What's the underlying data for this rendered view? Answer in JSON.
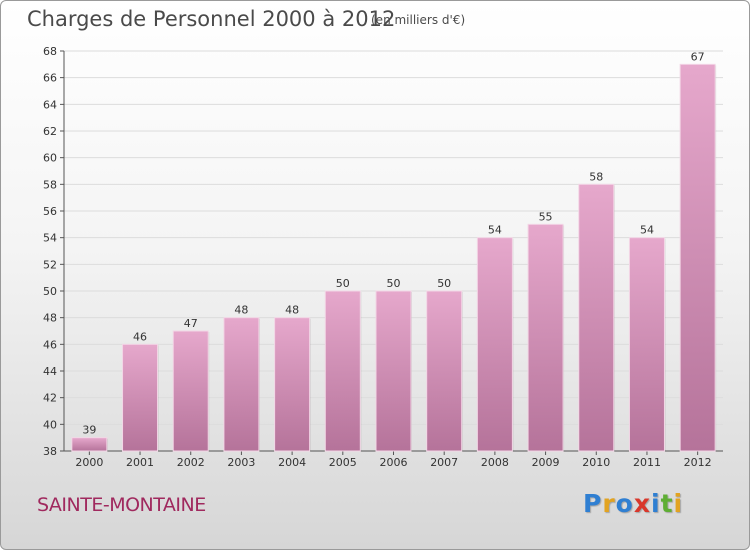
{
  "header": {
    "title": "Charges de Personnel 2000 à 2012",
    "subtitle": "(en milliers d'€)"
  },
  "footer": {
    "place": "SAINTE-MONTAINE",
    "logo_letters": [
      {
        "ch": "P",
        "color": "#2f7fd2"
      },
      {
        "ch": "r",
        "color": "#e2a321"
      },
      {
        "ch": "o",
        "color": "#2f7fd2"
      },
      {
        "ch": "x",
        "color": "#d9372b"
      },
      {
        "ch": "i",
        "color": "#2f7fd2"
      },
      {
        "ch": "t",
        "color": "#5fae34"
      },
      {
        "ch": "i",
        "color": "#e2a321"
      }
    ]
  },
  "colors": {
    "bar_top": "#e6a8cc",
    "bar_bottom": "#b5739a",
    "grid": "#dcdcdc"
  },
  "chart_data": {
    "type": "bar",
    "title": "Charges de Personnel 2000 à 2012",
    "subtitle": "(en milliers d'€)",
    "categories": [
      "2000",
      "2001",
      "2002",
      "2003",
      "2004",
      "2005",
      "2006",
      "2007",
      "2008",
      "2009",
      "2010",
      "2011",
      "2012"
    ],
    "values": [
      39,
      46,
      47,
      48,
      48,
      50,
      50,
      50,
      54,
      55,
      58,
      54,
      67
    ],
    "ylim": [
      38,
      68
    ],
    "yticks": [
      38,
      40,
      42,
      44,
      46,
      48,
      50,
      52,
      54,
      56,
      58,
      60,
      62,
      64,
      66,
      68
    ],
    "grid": true,
    "xlabel": "",
    "ylabel": ""
  }
}
